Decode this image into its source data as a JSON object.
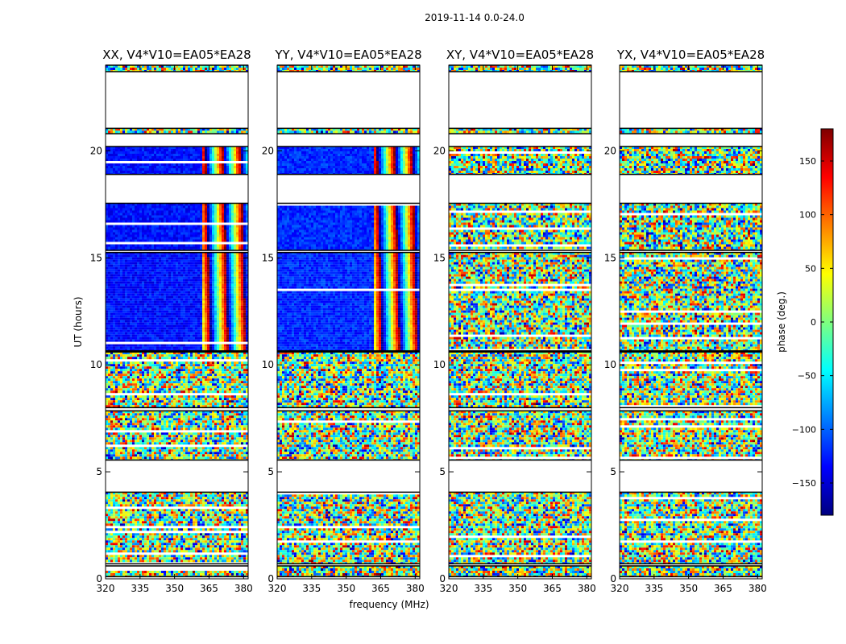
{
  "figure": {
    "suptitle": "2019-11-14 0.0-24.0",
    "ylabel": "UT (hours)",
    "xlabel": "frequency (MHz)"
  },
  "colorbar": {
    "label": "phase (deg.)",
    "range": [
      -180,
      180
    ],
    "ticks": [
      150,
      100,
      50,
      0,
      -50,
      -100,
      -150
    ],
    "tick_labels": [
      "150",
      "100",
      "50",
      "0",
      "−50",
      "−100",
      "−150"
    ],
    "colormap": [
      "#00007f",
      "#0000ff",
      "#007fff",
      "#00ffff",
      "#7fff7f",
      "#ffff00",
      "#ff7f00",
      "#ff0000",
      "#7f0000"
    ]
  },
  "chart_data": [
    {
      "type": "heatmap",
      "title": "XX, V4*V10=EA05*EA28",
      "xlim": [
        320,
        382
      ],
      "ylim": [
        0,
        24
      ],
      "xticks": [
        320,
        335,
        350,
        365,
        380
      ],
      "yticks": [
        0,
        5,
        10,
        15,
        20
      ],
      "value": "phase (deg.)",
      "data_segments_hours": [
        [
          0.1,
          0.6
        ],
        [
          0.7,
          4.05
        ],
        [
          5.55,
          7.85
        ],
        [
          8.0,
          10.6
        ],
        [
          10.65,
          15.25
        ],
        [
          15.35,
          17.55
        ],
        [
          18.9,
          20.2
        ],
        [
          20.8,
          21.05
        ],
        [
          23.7,
          24.0
        ]
      ],
      "coherent_freq_band_mhz": [
        320,
        361
      ],
      "coherent_phase_deg": -130
    },
    {
      "type": "heatmap",
      "title": "YY, V4*V10=EA05*EA28",
      "xlim": [
        320,
        382
      ],
      "ylim": [
        0,
        24
      ],
      "xticks": [
        320,
        335,
        350,
        365,
        380
      ],
      "yticks": [
        0,
        5,
        10,
        15,
        20
      ],
      "value": "phase (deg.)",
      "data_segments_hours": [
        [
          0.1,
          0.6
        ],
        [
          0.7,
          4.05
        ],
        [
          5.55,
          7.85
        ],
        [
          8.0,
          10.6
        ],
        [
          10.65,
          15.25
        ],
        [
          15.35,
          17.55
        ],
        [
          18.9,
          20.2
        ],
        [
          20.8,
          21.05
        ],
        [
          23.7,
          24.0
        ]
      ],
      "coherent_freq_band_mhz": [
        320,
        361
      ],
      "coherent_phase_deg": -120
    },
    {
      "type": "heatmap",
      "title": "XY, V4*V10=EA05*EA28",
      "xlim": [
        320,
        382
      ],
      "ylim": [
        0,
        24
      ],
      "xticks": [
        320,
        335,
        350,
        365,
        380
      ],
      "yticks": [
        0,
        5,
        10,
        15,
        20
      ],
      "value": "phase (deg.)",
      "data_segments_hours": [
        [
          0.1,
          0.6
        ],
        [
          0.7,
          4.05
        ],
        [
          5.55,
          7.85
        ],
        [
          8.0,
          10.6
        ],
        [
          10.65,
          15.25
        ],
        [
          15.35,
          17.55
        ],
        [
          18.9,
          20.2
        ],
        [
          20.8,
          21.05
        ],
        [
          23.7,
          24.0
        ]
      ],
      "coherent_freq_band_mhz": null,
      "coherent_phase_deg": null
    },
    {
      "type": "heatmap",
      "title": "YX, V4*V10=EA05*EA28",
      "xlim": [
        320,
        382
      ],
      "ylim": [
        0,
        24
      ],
      "xticks": [
        320,
        335,
        350,
        365,
        380
      ],
      "yticks": [
        0,
        5,
        10,
        15,
        20
      ],
      "value": "phase (deg.)",
      "data_segments_hours": [
        [
          0.1,
          0.6
        ],
        [
          0.7,
          4.05
        ],
        [
          5.55,
          7.85
        ],
        [
          8.0,
          10.6
        ],
        [
          10.65,
          15.25
        ],
        [
          15.35,
          17.55
        ],
        [
          18.9,
          20.2
        ],
        [
          20.8,
          21.05
        ],
        [
          23.7,
          24.0
        ]
      ],
      "coherent_freq_band_mhz": null,
      "coherent_phase_deg": null
    }
  ]
}
